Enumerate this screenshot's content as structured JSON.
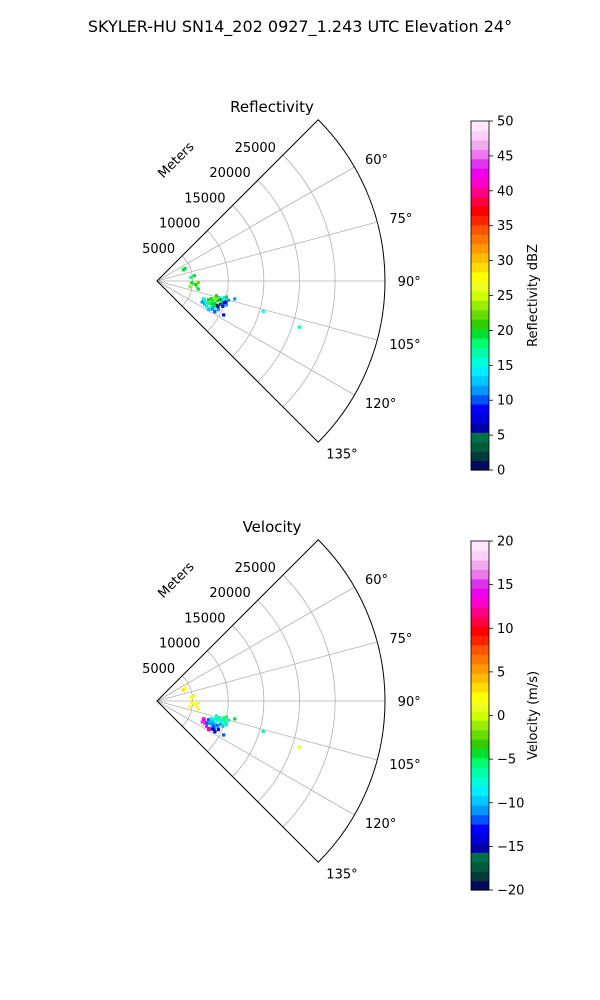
{
  "suptitle": "SKYLER-HU  SN14_202  0927_1.243 UTC Elevation 24°",
  "range_unit_label": "Meters",
  "chart_data": [
    {
      "type": "polar_sector",
      "title": "Reflectivity",
      "theta_range_deg": [
        45,
        135
      ],
      "range_max_m": 32000,
      "range_ticks": [
        5000,
        10000,
        15000,
        20000,
        25000
      ],
      "range_tick_labels": [
        "5000",
        "10000",
        "15000",
        "20000",
        "25000"
      ],
      "theta_ticks_deg": [
        60,
        75,
        90,
        105,
        120,
        135
      ],
      "theta_tick_labels": [
        "60°",
        "75°",
        "90°",
        "105°",
        "120°",
        "135°"
      ],
      "grid": true,
      "colorbar": {
        "label": "Reflectivity dBZ",
        "min": 0,
        "max": 50,
        "ticks": [
          0,
          5,
          10,
          15,
          20,
          25,
          30,
          35,
          40,
          45,
          50
        ],
        "tick_labels": [
          "0",
          "5",
          "10",
          "15",
          "20",
          "25",
          "30",
          "35",
          "40",
          "45",
          "50"
        ],
        "colors": [
          "#000b5c",
          "#003a3a",
          "#005b3a",
          "#007048",
          "#0000aa",
          "#0000dd",
          "#0000ff",
          "#0055ff",
          "#0099ff",
          "#00c8ff",
          "#00eeff",
          "#00ffd8",
          "#00ffa8",
          "#00ff70",
          "#00e030",
          "#33cc00",
          "#66dd00",
          "#99ee00",
          "#ccff00",
          "#eeff22",
          "#ffff00",
          "#ffdd00",
          "#ffbb00",
          "#ff9900",
          "#ff7700",
          "#ff5500",
          "#ff2200",
          "#ff0000",
          "#ff0044",
          "#ff0088",
          "#ff00cc",
          "#ee00ee",
          "#dd33ee",
          "#ee77ee",
          "#f0aaf0",
          "#ffcffa",
          "#ffe8fd"
        ]
      },
      "points": [
        {
          "az": 117,
          "r": 7800,
          "v": 14
        },
        {
          "az": 116,
          "r": 7400,
          "v": 13
        },
        {
          "az": 118,
          "r": 8200,
          "v": 15
        },
        {
          "az": 114,
          "r": 7600,
          "v": 17
        },
        {
          "az": 115,
          "r": 8500,
          "v": 16
        },
        {
          "az": 113,
          "r": 8000,
          "v": 18
        },
        {
          "az": 112,
          "r": 7200,
          "v": 20
        },
        {
          "az": 111,
          "r": 8700,
          "v": 19
        },
        {
          "az": 110,
          "r": 7700,
          "v": 21
        },
        {
          "az": 109,
          "r": 8300,
          "v": 22
        },
        {
          "az": 108,
          "r": 8900,
          "v": 20
        },
        {
          "az": 107,
          "r": 9400,
          "v": 18
        },
        {
          "az": 106,
          "r": 9800,
          "v": 16
        },
        {
          "az": 106,
          "r": 9200,
          "v": 4
        },
        {
          "az": 108,
          "r": 9900,
          "v": 6
        },
        {
          "az": 110,
          "r": 9500,
          "v": 3
        },
        {
          "az": 112,
          "r": 9100,
          "v": 2
        },
        {
          "az": 109,
          "r": 10300,
          "v": 12
        },
        {
          "az": 111,
          "r": 9900,
          "v": 9
        },
        {
          "az": 113,
          "r": 9300,
          "v": 7
        },
        {
          "az": 115,
          "r": 9500,
          "v": 11
        },
        {
          "az": 116,
          "r": 8900,
          "v": 14
        },
        {
          "az": 114,
          "r": 8700,
          "v": 19
        },
        {
          "az": 112,
          "r": 8400,
          "v": 21
        },
        {
          "az": 110,
          "r": 8200,
          "v": 18
        },
        {
          "az": 108,
          "r": 8000,
          "v": 20
        },
        {
          "az": 107,
          "r": 8600,
          "v": 23
        },
        {
          "az": 105,
          "r": 9000,
          "v": 17
        },
        {
          "az": 104,
          "r": 9700,
          "v": 14
        },
        {
          "az": 105,
          "r": 10400,
          "v": 12
        },
        {
          "az": 107,
          "r": 10100,
          "v": 8
        },
        {
          "az": 103,
          "r": 10000,
          "v": 19
        },
        {
          "az": 104,
          "r": 8600,
          "v": 21
        },
        {
          "az": 111,
          "r": 7000,
          "v": 16
        },
        {
          "az": 113,
          "r": 7200,
          "v": 15
        },
        {
          "az": 115,
          "r": 7000,
          "v": 12
        },
        {
          "az": 117,
          "r": 8700,
          "v": 11
        },
        {
          "az": 119,
          "r": 8300,
          "v": 13
        },
        {
          "az": 118,
          "r": 9200,
          "v": 10
        },
        {
          "az": 117,
          "r": 10500,
          "v": 9
        },
        {
          "az": 103,
          "r": 11200,
          "v": 12
        },
        {
          "az": 101,
          "r": 5900,
          "v": 20
        },
        {
          "az": 97,
          "r": 5600,
          "v": 18
        },
        {
          "az": 95,
          "r": 5400,
          "v": 21
        },
        {
          "az": 93,
          "r": 4900,
          "v": 19
        },
        {
          "az": 92,
          "r": 5800,
          "v": 22
        },
        {
          "az": 84,
          "r": 4800,
          "v": 18
        },
        {
          "az": 82,
          "r": 5300,
          "v": 20
        },
        {
          "az": 67,
          "r": 4000,
          "v": 19
        },
        {
          "az": 66,
          "r": 4300,
          "v": 20
        },
        {
          "az": 100,
          "r": 4700,
          "v": 23
        },
        {
          "az": 106,
          "r": 15500,
          "v": 15
        },
        {
          "az": 108,
          "r": 21000,
          "v": 16
        }
      ]
    },
    {
      "type": "polar_sector",
      "title": "Velocity",
      "theta_range_deg": [
        45,
        135
      ],
      "range_max_m": 32000,
      "range_ticks": [
        5000,
        10000,
        15000,
        20000,
        25000
      ],
      "range_tick_labels": [
        "5000",
        "10000",
        "15000",
        "20000",
        "25000"
      ],
      "theta_ticks_deg": [
        60,
        75,
        90,
        105,
        120,
        135
      ],
      "theta_tick_labels": [
        "60°",
        "75°",
        "90°",
        "105°",
        "120°",
        "135°"
      ],
      "grid": true,
      "colorbar": {
        "label": "Velocity (m/s)",
        "min": -20,
        "max": 20,
        "ticks": [
          -20,
          -15,
          -10,
          -5,
          0,
          5,
          10,
          15,
          20
        ],
        "tick_labels": [
          "−20",
          "−15",
          "−10",
          "−5",
          "0",
          "5",
          "10",
          "15",
          "20"
        ],
        "colors": [
          "#000b5c",
          "#003a3a",
          "#005b3a",
          "#007048",
          "#0000aa",
          "#0000dd",
          "#0000ff",
          "#0055ff",
          "#0099ff",
          "#00c8ff",
          "#00eeff",
          "#00ffd8",
          "#00ffa8",
          "#00ff70",
          "#00e030",
          "#33cc00",
          "#66dd00",
          "#99ee00",
          "#ccff00",
          "#eeff22",
          "#ffff00",
          "#ffdd00",
          "#ffbb00",
          "#ff9900",
          "#ff7700",
          "#ff5500",
          "#ff2200",
          "#ff0000",
          "#ff0044",
          "#ff0088",
          "#ff00cc",
          "#ee00ee",
          "#dd33ee",
          "#ee77ee",
          "#f0aaf0",
          "#ffcffa",
          "#ffe8fd"
        ]
      },
      "points": [
        {
          "az": 117,
          "r": 7800,
          "v": 14
        },
        {
          "az": 116,
          "r": 7400,
          "v": 16
        },
        {
          "az": 118,
          "r": 8200,
          "v": 12
        },
        {
          "az": 114,
          "r": 7600,
          "v": -12
        },
        {
          "az": 115,
          "r": 8500,
          "v": -10
        },
        {
          "az": 113,
          "r": 8000,
          "v": -11
        },
        {
          "az": 112,
          "r": 7200,
          "v": 15
        },
        {
          "az": 111,
          "r": 8700,
          "v": -9
        },
        {
          "az": 110,
          "r": 7700,
          "v": -12
        },
        {
          "az": 109,
          "r": 8300,
          "v": -10
        },
        {
          "az": 108,
          "r": 8900,
          "v": -8
        },
        {
          "az": 107,
          "r": 9400,
          "v": -7
        },
        {
          "az": 106,
          "r": 9800,
          "v": -6
        },
        {
          "az": 106,
          "r": 9200,
          "v": -9
        },
        {
          "az": 108,
          "r": 9900,
          "v": -8
        },
        {
          "az": 110,
          "r": 9500,
          "v": -11
        },
        {
          "az": 112,
          "r": 9100,
          "v": -12
        },
        {
          "az": 109,
          "r": 10300,
          "v": -6
        },
        {
          "az": 111,
          "r": 9900,
          "v": -10
        },
        {
          "az": 113,
          "r": 9300,
          "v": -11
        },
        {
          "az": 115,
          "r": 9500,
          "v": -13
        },
        {
          "az": 116,
          "r": 8900,
          "v": -14
        },
        {
          "az": 114,
          "r": 8700,
          "v": -12
        },
        {
          "az": 112,
          "r": 8400,
          "v": -11
        },
        {
          "az": 110,
          "r": 8200,
          "v": -10
        },
        {
          "az": 108,
          "r": 8000,
          "v": -9
        },
        {
          "az": 107,
          "r": 8600,
          "v": -7
        },
        {
          "az": 105,
          "r": 9000,
          "v": -6
        },
        {
          "az": 104,
          "r": 9700,
          "v": -5
        },
        {
          "az": 105,
          "r": 10400,
          "v": -6
        },
        {
          "az": 107,
          "r": 10100,
          "v": -7
        },
        {
          "az": 103,
          "r": 10000,
          "v": -5
        },
        {
          "az": 104,
          "r": 8600,
          "v": -8
        },
        {
          "az": 111,
          "r": 7000,
          "v": 14
        },
        {
          "az": 113,
          "r": 7200,
          "v": 13
        },
        {
          "az": 115,
          "r": 7000,
          "v": 15
        },
        {
          "az": 117,
          "r": 8700,
          "v": -13
        },
        {
          "az": 119,
          "r": 8300,
          "v": 12
        },
        {
          "az": 118,
          "r": 9200,
          "v": -14
        },
        {
          "az": 117,
          "r": 10500,
          "v": -12
        },
        {
          "az": 103,
          "r": 11200,
          "v": -4
        },
        {
          "az": 101,
          "r": 5900,
          "v": 1
        },
        {
          "az": 97,
          "r": 5600,
          "v": 2
        },
        {
          "az": 95,
          "r": 5400,
          "v": 1
        },
        {
          "az": 93,
          "r": 4900,
          "v": 2
        },
        {
          "az": 92,
          "r": 5800,
          "v": 1
        },
        {
          "az": 84,
          "r": 4800,
          "v": 2
        },
        {
          "az": 82,
          "r": 5300,
          "v": 1
        },
        {
          "az": 67,
          "r": 4000,
          "v": 3
        },
        {
          "az": 66,
          "r": 4300,
          "v": 2
        },
        {
          "az": 100,
          "r": 4700,
          "v": 1
        },
        {
          "az": 106,
          "r": 15500,
          "v": -6
        },
        {
          "az": 108,
          "r": 21000,
          "v": 1
        }
      ]
    }
  ]
}
